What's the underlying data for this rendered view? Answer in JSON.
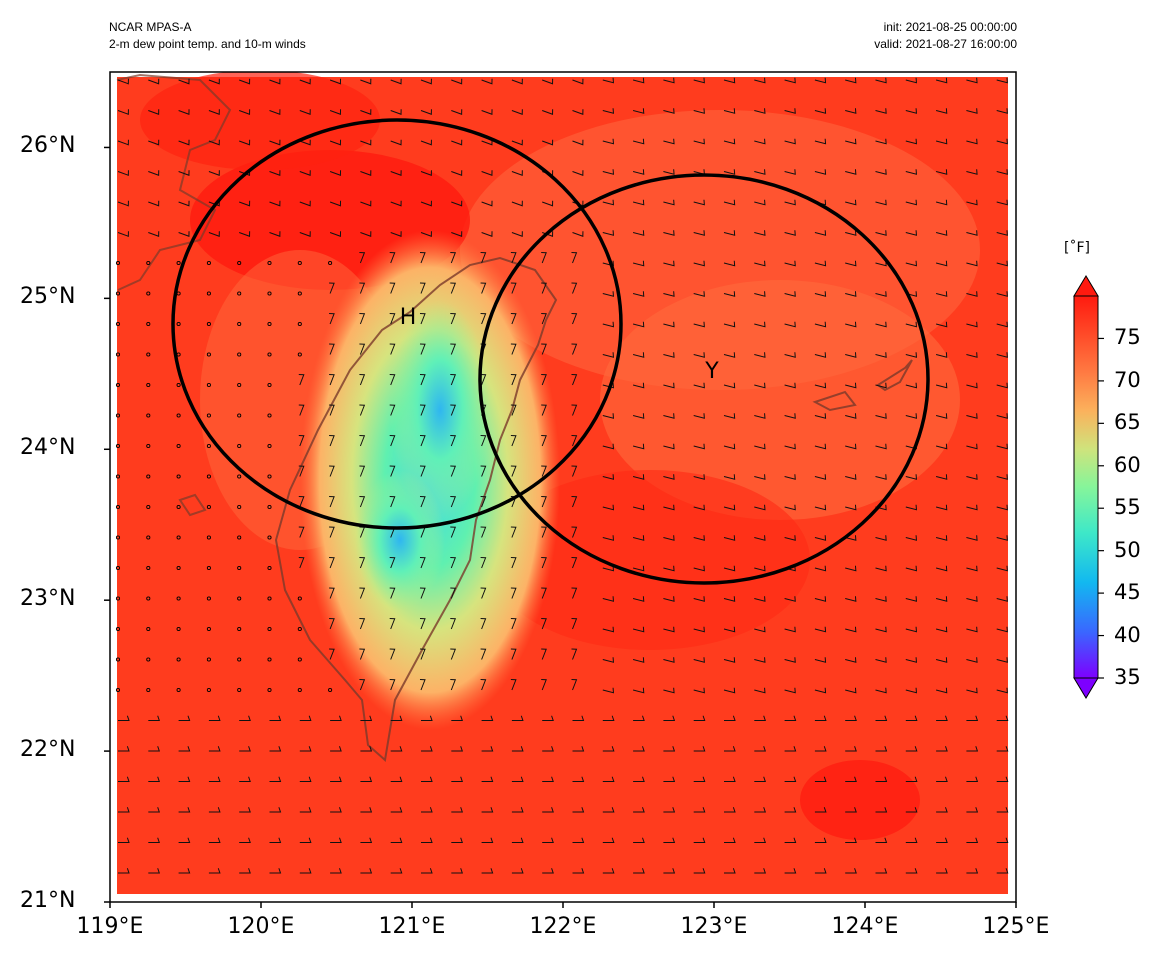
{
  "header": {
    "model": "NCAR MPAS-A",
    "product": "2-m dew point temp. and 10-m winds",
    "init": "init: 2021-08-25 00:00:00",
    "valid": "valid: 2021-08-27 16:00:00"
  },
  "map": {
    "lon_range": [
      119,
      125
    ],
    "lat_range": [
      21,
      26.5
    ],
    "x_tick_labels": [
      "119°E",
      "120°E",
      "121°E",
      "122°E",
      "123°E",
      "124°E",
      "125°E"
    ],
    "y_tick_labels": [
      "21°N",
      "22°N",
      "23°N",
      "24°N",
      "25°N",
      "26°N"
    ],
    "markers": [
      {
        "label": "H",
        "lon": 120.98,
        "lat": 24.86
      },
      {
        "label": "Y",
        "lon": 122.98,
        "lat": 24.51
      }
    ],
    "circles": [
      {
        "center_lon": 120.94,
        "center_lat": 24.82,
        "radius_deg_lon": 1.48,
        "radius_deg_lat": 1.35
      },
      {
        "center_lon": 122.94,
        "center_lat": 24.46,
        "radius_deg_lon": 1.48,
        "radius_deg_lat": 1.35
      }
    ]
  },
  "colorbar": {
    "units": "[˚F]",
    "range": [
      35,
      80
    ],
    "tick_labels": [
      "35",
      "40",
      "45",
      "50",
      "55",
      "60",
      "65",
      "70",
      "75"
    ],
    "colormap": [
      "#7d00ff",
      "#3a66ff",
      "#12b8f0",
      "#3ee8c8",
      "#86f59a",
      "#cfe37c",
      "#fbb15c",
      "#ff7a42",
      "#ff4a28",
      "#ff1a0f"
    ],
    "extend": "both"
  }
}
